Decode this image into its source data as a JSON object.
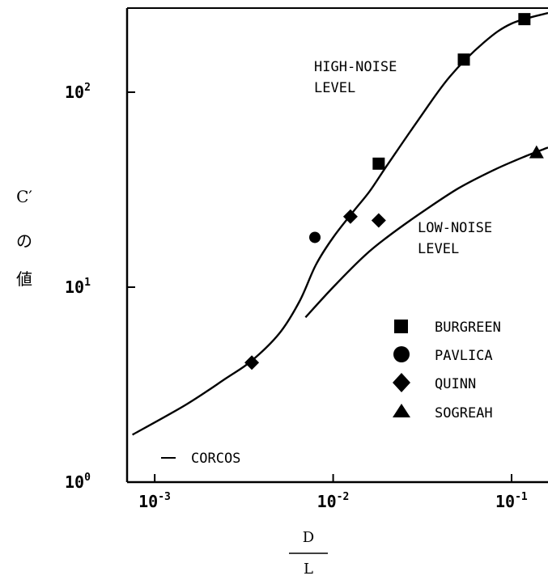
{
  "chart_data": {
    "type": "scatter",
    "x_scale": "log",
    "y_scale": "log",
    "xlim": [
      0.0007,
      0.16
    ],
    "ylim": [
      1,
      270
    ],
    "x_ticks": [
      {
        "value": 0.001,
        "base": "10",
        "exp": "-3"
      },
      {
        "value": 0.01,
        "base": "10",
        "exp": "-2"
      },
      {
        "value": 0.1,
        "base": "10",
        "exp": "-1"
      }
    ],
    "y_ticks": [
      {
        "value": 1,
        "base": "10",
        "exp": "0"
      },
      {
        "value": 10,
        "base": "10",
        "exp": "1"
      },
      {
        "value": 100,
        "base": "10",
        "exp": "2"
      }
    ],
    "ylabel_lines": [
      "C′",
      "の",
      "値"
    ],
    "xlabel_numerator": "D",
    "xlabel_denominator": "L",
    "grid": false,
    "legend_position": "right",
    "series": [
      {
        "name": "BURGREEN",
        "marker": "square",
        "points": [
          [
            0.018,
            43
          ],
          [
            0.054,
            147
          ],
          [
            0.118,
            237
          ]
        ]
      },
      {
        "name": "PAVLICA",
        "marker": "circle",
        "points": [
          [
            0.0079,
            18
          ]
        ]
      },
      {
        "name": "QUINN",
        "marker": "diamond",
        "points": [
          [
            0.0035,
            4.1
          ],
          [
            0.0125,
            23
          ],
          [
            0.018,
            22
          ]
        ]
      },
      {
        "name": "SOGREAH",
        "marker": "triangle",
        "points": [
          [
            0.138,
            49
          ]
        ]
      }
    ],
    "curves": [
      {
        "name": "CORCOS",
        "style": "solid",
        "points": [
          [
            0.00075,
            1.75
          ],
          [
            0.0015,
            2.5
          ],
          [
            0.0025,
            3.4
          ],
          [
            0.0035,
            4.2
          ],
          [
            0.005,
            5.8
          ],
          [
            0.0065,
            8.5
          ],
          [
            0.008,
            13
          ],
          [
            0.01,
            18
          ],
          [
            0.013,
            24.5
          ],
          [
            0.016,
            31
          ],
          [
            0.02,
            42
          ],
          [
            0.03,
            72
          ],
          [
            0.045,
            120
          ],
          [
            0.07,
            180
          ],
          [
            0.1,
            225
          ],
          [
            0.16,
            255
          ]
        ]
      },
      {
        "name": "CORCOS",
        "style": "solid",
        "points": [
          [
            0.007,
            7
          ],
          [
            0.01,
            10
          ],
          [
            0.015,
            14.5
          ],
          [
            0.02,
            18
          ],
          [
            0.03,
            23.5
          ],
          [
            0.05,
            32
          ],
          [
            0.08,
            40
          ],
          [
            0.12,
            47
          ],
          [
            0.16,
            52
          ]
        ]
      }
    ],
    "annotations": [
      {
        "lines": [
          "HIGH-NOISE",
          "LEVEL"
        ]
      },
      {
        "lines": [
          "LOW-NOISE",
          "LEVEL"
        ]
      }
    ],
    "curve_legend_label": "CORCOS"
  }
}
